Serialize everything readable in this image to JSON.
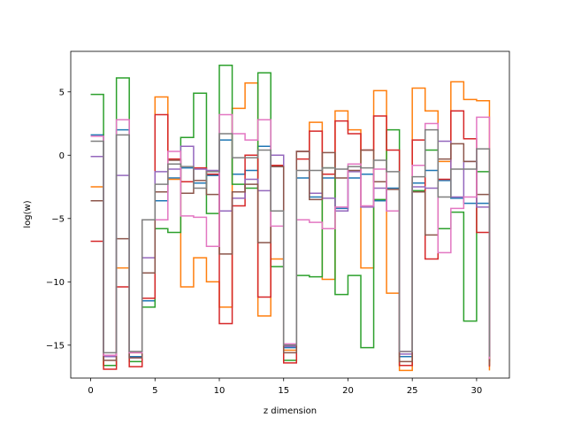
{
  "chart_data": {
    "type": "line",
    "step": "post",
    "xlabel": "z dimension",
    "ylabel": "log(w)",
    "xlim": [
      -1.55,
      32.55
    ],
    "ylim": [
      -17.6,
      8.2
    ],
    "xticks": [
      0,
      5,
      10,
      15,
      20,
      25,
      30
    ],
    "yticks": [
      -15,
      -10,
      -5,
      0,
      5
    ],
    "x": [
      0,
      1,
      2,
      3,
      4,
      5,
      6,
      7,
      8,
      9,
      10,
      11,
      12,
      13,
      14,
      15,
      16,
      17,
      18,
      19,
      20,
      21,
      22,
      23,
      24,
      25,
      26,
      27,
      28,
      29,
      30,
      31
    ],
    "series": [
      {
        "color": "#1f77b4",
        "values": [
          1.6,
          -15.8,
          2.0,
          -15.9,
          -11.5,
          -3.6,
          -1.8,
          -1.0,
          -2.2,
          -1.6,
          1.2,
          -1.5,
          -1.2,
          0.7,
          -0.9,
          -15.2,
          -1.8,
          -3.3,
          -1.8,
          -4.2,
          -1.8,
          -1.5,
          -3.6,
          -2.6,
          -15.9,
          -2.2,
          -1.2,
          -2.0,
          -3.4,
          -3.8,
          -3.8,
          -15.9
        ]
      },
      {
        "color": "#ff7f0e",
        "values": [
          -2.5,
          -16.6,
          -8.9,
          -15.6,
          -5.1,
          4.6,
          -1.9,
          -10.4,
          -8.1,
          -10.0,
          -12.0,
          3.7,
          5.7,
          -12.7,
          -8.2,
          -15.4,
          0.3,
          2.6,
          -9.8,
          3.5,
          2.0,
          -8.9,
          5.1,
          -10.9,
          -17.0,
          5.3,
          3.5,
          -0.5,
          5.8,
          4.4,
          4.3,
          -17.0
        ]
      },
      {
        "color": "#2ca02c",
        "values": [
          4.8,
          -16.6,
          6.1,
          -16.3,
          -12.0,
          -5.8,
          -6.1,
          1.4,
          4.9,
          -4.6,
          7.1,
          -2.3,
          -2.6,
          6.5,
          -8.8,
          -16.2,
          -9.5,
          -9.6,
          -1.0,
          -11.0,
          -9.5,
          -15.2,
          -3.5,
          2.0,
          -16.6,
          -2.8,
          0.4,
          -5.8,
          -4.5,
          -13.1,
          -1.3,
          -16.3
        ]
      },
      {
        "color": "#d62728",
        "values": [
          -6.8,
          -16.9,
          -10.4,
          -16.7,
          -11.3,
          3.2,
          -0.3,
          -2.1,
          -1.0,
          -1.5,
          -13.3,
          -4.0,
          0.0,
          -11.2,
          -0.8,
          -16.4,
          -0.3,
          1.9,
          -1.5,
          2.7,
          1.7,
          0.4,
          3.1,
          0.4,
          -16.6,
          1.2,
          -8.2,
          -1.9,
          3.5,
          1.3,
          -6.1,
          -16.7
        ]
      },
      {
        "color": "#9467bd",
        "values": [
          -0.1,
          -15.9,
          -1.6,
          -16.0,
          -8.1,
          -1.3,
          -1.1,
          0.7,
          -1.1,
          -1.2,
          -4.4,
          -3.4,
          -1.9,
          -2.8,
          0.0,
          -15.1,
          0.3,
          -3.0,
          -3.4,
          -4.4,
          -1.3,
          -4.1,
          -2.6,
          -4.4,
          -15.7,
          -2.5,
          -2.6,
          1.1,
          -3.3,
          -0.5,
          -4.1,
          -15.8
        ]
      },
      {
        "color": "#8c564b",
        "values": [
          -3.6,
          -16.2,
          -6.6,
          -16.0,
          -9.3,
          -2.9,
          -0.4,
          -3.0,
          -2.0,
          -3.1,
          -7.8,
          -2.9,
          -2.3,
          -6.9,
          -0.9,
          -15.6,
          0.3,
          -3.5,
          0.2,
          -1.8,
          -1.2,
          0.4,
          -2.1,
          -2.7,
          -16.3,
          -2.9,
          -6.3,
          -0.3,
          0.9,
          -0.5,
          -3.1,
          -16.6
        ]
      },
      {
        "color": "#e377c2",
        "values": [
          1.5,
          -15.8,
          2.8,
          -15.6,
          -5.1,
          -5.1,
          0.3,
          -4.8,
          -4.9,
          -7.2,
          3.2,
          1.7,
          1.2,
          2.8,
          -5.6,
          -14.9,
          -5.1,
          -5.3,
          -5.8,
          -4.1,
          -0.7,
          -4.0,
          -1.1,
          -4.4,
          -15.5,
          -0.8,
          2.5,
          -7.7,
          -4.2,
          -3.3,
          3.0,
          -16.1
        ]
      },
      {
        "color": "#7f7f7f",
        "values": [
          1.1,
          -15.6,
          1.6,
          -15.5,
          -5.1,
          -2.3,
          -0.7,
          -0.9,
          -2.6,
          -1.3,
          1.7,
          -0.2,
          -0.2,
          0.4,
          -4.4,
          -15.0,
          -1.2,
          -1.2,
          -1.0,
          -1.1,
          -0.9,
          -1.0,
          -0.4,
          -1.3,
          -15.5,
          -1.7,
          2.0,
          -3.3,
          -1.1,
          -1.1,
          0.5,
          -15.9
        ]
      }
    ]
  }
}
